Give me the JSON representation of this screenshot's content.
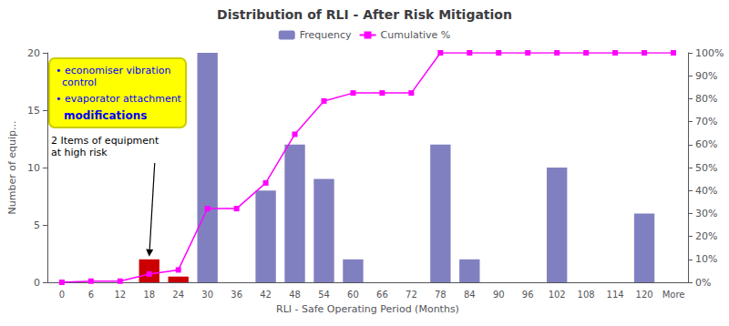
{
  "chart_data": {
    "type": "bar",
    "title": "Distribution of RLI - After Risk Mitigation",
    "xlabel": "RLI - Safe Operating Period (Months)",
    "ylabel": "Number of equip...",
    "categories": [
      "0",
      "6",
      "12",
      "18",
      "24",
      "30",
      "36",
      "42",
      "48",
      "54",
      "60",
      "66",
      "72",
      "78",
      "84",
      "90",
      "96",
      "102",
      "108",
      "114",
      "120",
      "More"
    ],
    "series": [
      {
        "name": "Frequency",
        "type": "bar",
        "color": "#8080c0",
        "values": [
          0,
          0,
          0,
          2,
          0.5,
          20,
          0,
          8,
          12,
          9,
          2,
          0,
          0,
          12,
          2,
          0,
          0,
          10,
          0,
          0,
          6,
          0
        ],
        "colors": [
          "#8080c0",
          "#8080c0",
          "#8080c0",
          "#cc0000",
          "#cc0000",
          "#8080c0",
          "#8080c0",
          "#8080c0",
          "#8080c0",
          "#8080c0",
          "#8080c0",
          "#8080c0",
          "#8080c0",
          "#8080c0",
          "#8080c0",
          "#8080c0",
          "#8080c0",
          "#8080c0",
          "#8080c0",
          "#8080c0",
          "#8080c0",
          "#8080c0"
        ]
      },
      {
        "name": "Cumulative %",
        "type": "line",
        "axis": "y2",
        "color": "#ff00ff",
        "marker": "square",
        "line_style": "solid",
        "values": [
          0.0,
          0.5,
          0.5,
          3.6,
          5.4,
          32.1,
          32.1,
          43.3,
          64.5,
          79.0,
          82.5,
          82.5,
          82.5,
          100.0,
          100.0,
          100.0,
          100.0,
          100.0,
          100.0,
          100.0,
          100.0,
          100.0
        ]
      }
    ],
    "ylim": [
      0,
      20
    ],
    "yticks": [
      0,
      5,
      10,
      15,
      20
    ],
    "y2lim": [
      0,
      100
    ],
    "y2ticks": [
      {
        "value": 0,
        "label": "0%"
      },
      {
        "value": 10,
        "label": "10%"
      },
      {
        "value": 20,
        "label": "20%"
      },
      {
        "value": 30,
        "label": "30%"
      },
      {
        "value": 40,
        "label": "40%"
      },
      {
        "value": 50,
        "label": "50%"
      },
      {
        "value": 60,
        "label": "60%"
      },
      {
        "value": 70,
        "label": "70%"
      },
      {
        "value": 80,
        "label": "80%"
      },
      {
        "value": 90,
        "label": "90%"
      },
      {
        "value": 100,
        "label": "100%"
      }
    ],
    "grid": false,
    "legend": "top",
    "annotations": [
      "• economiser vibration\n  control",
      "• evaporator attachment",
      "modifications",
      "2 Items of equipment\nat high risk"
    ]
  }
}
